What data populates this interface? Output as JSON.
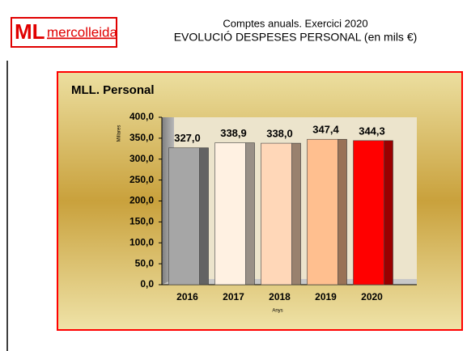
{
  "header": {
    "logo_mark": "ML",
    "logo_name": "mercolleida",
    "line1": "Comptes anuals. Exercici 2020",
    "line2": "EVOLUCIÓ DESPESES PERSONAL (en mils €)"
  },
  "chart_data": {
    "type": "bar",
    "title": "MLL. Personal",
    "y_label": "Millares",
    "x_label": "Anys",
    "categories": [
      "2016",
      "2017",
      "2018",
      "2019",
      "2020"
    ],
    "values": [
      327.0,
      338.9,
      338.0,
      347.4,
      344.3
    ],
    "value_labels": [
      "327,0",
      "338,9",
      "338,0",
      "347,4",
      "344,3"
    ],
    "colors": [
      "#a6a6a6",
      "#fff1e2",
      "#ffd7b8",
      "#ffbf8f",
      "#ff0000"
    ],
    "ylim": [
      0,
      400
    ],
    "yticks": [
      {
        "value": 0,
        "label": "0,0"
      },
      {
        "value": 50,
        "label": "50,0"
      },
      {
        "value": 100,
        "label": "100,0"
      },
      {
        "value": 150,
        "label": "150,0"
      },
      {
        "value": 200,
        "label": "200,0"
      },
      {
        "value": 250,
        "label": "250,0"
      },
      {
        "value": 300,
        "label": "300,0"
      },
      {
        "value": 350,
        "label": "350,0"
      },
      {
        "value": 400,
        "label": "400,0"
      }
    ]
  }
}
